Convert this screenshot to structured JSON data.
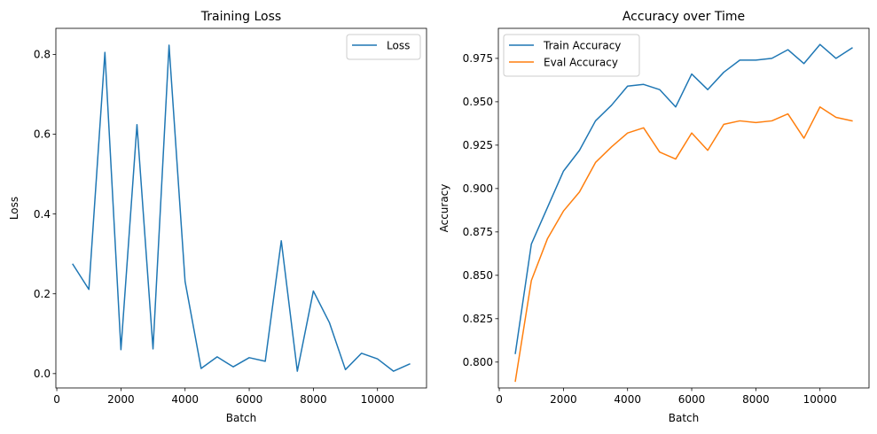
{
  "chart_data": [
    {
      "type": "line",
      "title": "Training Loss",
      "xlabel": "Batch",
      "ylabel": "Loss",
      "xlim": [
        -29,
        11529
      ],
      "ylim": [
        -0.0359,
        0.8653
      ],
      "xticks": [
        0,
        2000,
        4000,
        6000,
        8000,
        10000
      ],
      "yticks": [
        0.0,
        0.2,
        0.4,
        0.6,
        0.8
      ],
      "ytick_labels": [
        "0.0",
        "0.2",
        "0.4",
        "0.6",
        "0.8"
      ],
      "grid": false,
      "legend": "upper right",
      "series": [
        {
          "name": "Loss",
          "color": "#1f77b4",
          "x": [
            500,
            1000,
            1500,
            2000,
            2500,
            3000,
            3500,
            4000,
            4500,
            5000,
            5500,
            6000,
            6500,
            7000,
            7500,
            8000,
            8500,
            9000,
            9500,
            10000,
            10500,
            11000
          ],
          "y": [
            0.274,
            0.211,
            0.805,
            0.06,
            0.624,
            0.062,
            0.823,
            0.231,
            0.013,
            0.042,
            0.017,
            0.04,
            0.031,
            0.333,
            0.006,
            0.207,
            0.128,
            0.01,
            0.051,
            0.037,
            0.006,
            0.024
          ]
        }
      ]
    },
    {
      "type": "line",
      "title": "Accuracy over Time",
      "xlabel": "Batch",
      "ylabel": "Accuracy",
      "xlim": [
        -29,
        11529
      ],
      "ylim": [
        0.7851,
        0.9923
      ],
      "xticks": [
        0,
        2000,
        4000,
        6000,
        8000,
        10000
      ],
      "yticks": [
        0.8,
        0.825,
        0.85,
        0.875,
        0.9,
        0.925,
        0.95,
        0.975
      ],
      "ytick_labels": [
        "0.800",
        "0.825",
        "0.850",
        "0.875",
        "0.900",
        "0.925",
        "0.950",
        "0.975"
      ],
      "grid": false,
      "legend": "upper left",
      "series": [
        {
          "name": "Train Accuracy",
          "color": "#1f77b4",
          "x": [
            500,
            1000,
            1500,
            2000,
            2500,
            3000,
            3500,
            4000,
            4500,
            5000,
            5500,
            6000,
            6500,
            7000,
            7500,
            8000,
            8500,
            9000,
            9500,
            10000,
            10500,
            11000
          ],
          "y": [
            0.805,
            0.868,
            0.889,
            0.91,
            0.922,
            0.939,
            0.948,
            0.959,
            0.96,
            0.957,
            0.947,
            0.966,
            0.957,
            0.967,
            0.974,
            0.974,
            0.975,
            0.98,
            0.972,
            0.983,
            0.975,
            0.981
          ]
        },
        {
          "name": "Eval Accuracy",
          "color": "#ff7f0e",
          "x": [
            500,
            1000,
            1500,
            2000,
            2500,
            3000,
            3500,
            4000,
            4500,
            5000,
            5500,
            6000,
            6500,
            7000,
            7500,
            8000,
            8500,
            9000,
            9500,
            10000,
            10500,
            11000
          ],
          "y": [
            0.789,
            0.847,
            0.871,
            0.887,
            0.898,
            0.915,
            0.924,
            0.932,
            0.935,
            0.921,
            0.917,
            0.932,
            0.922,
            0.937,
            0.939,
            0.938,
            0.939,
            0.943,
            0.929,
            0.947,
            0.941,
            0.939
          ]
        }
      ]
    }
  ]
}
